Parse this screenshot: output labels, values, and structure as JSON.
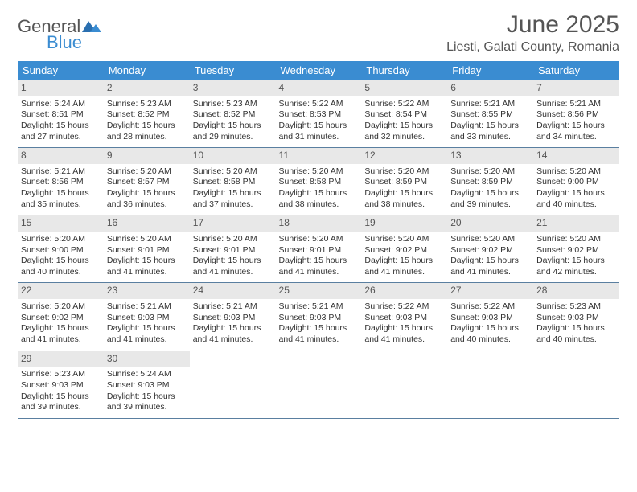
{
  "logo": {
    "general": "General",
    "blue": "Blue"
  },
  "title": "June 2025",
  "location": "Liesti, Galati County, Romania",
  "colors": {
    "header_bg": "#3a8cd1",
    "header_text": "#ffffff",
    "daynum_bg": "#e8e8e8",
    "border": "#5a7fa0",
    "title_color": "#555555",
    "body_text": "#333333",
    "logo_blue": "#3a8cd1",
    "logo_gray": "#555555"
  },
  "days_of_week": [
    "Sunday",
    "Monday",
    "Tuesday",
    "Wednesday",
    "Thursday",
    "Friday",
    "Saturday"
  ],
  "weeks": [
    [
      {
        "n": "1",
        "sr": "Sunrise: 5:24 AM",
        "ss": "Sunset: 8:51 PM",
        "d1": "Daylight: 15 hours",
        "d2": "and 27 minutes."
      },
      {
        "n": "2",
        "sr": "Sunrise: 5:23 AM",
        "ss": "Sunset: 8:52 PM",
        "d1": "Daylight: 15 hours",
        "d2": "and 28 minutes."
      },
      {
        "n": "3",
        "sr": "Sunrise: 5:23 AM",
        "ss": "Sunset: 8:52 PM",
        "d1": "Daylight: 15 hours",
        "d2": "and 29 minutes."
      },
      {
        "n": "4",
        "sr": "Sunrise: 5:22 AM",
        "ss": "Sunset: 8:53 PM",
        "d1": "Daylight: 15 hours",
        "d2": "and 31 minutes."
      },
      {
        "n": "5",
        "sr": "Sunrise: 5:22 AM",
        "ss": "Sunset: 8:54 PM",
        "d1": "Daylight: 15 hours",
        "d2": "and 32 minutes."
      },
      {
        "n": "6",
        "sr": "Sunrise: 5:21 AM",
        "ss": "Sunset: 8:55 PM",
        "d1": "Daylight: 15 hours",
        "d2": "and 33 minutes."
      },
      {
        "n": "7",
        "sr": "Sunrise: 5:21 AM",
        "ss": "Sunset: 8:56 PM",
        "d1": "Daylight: 15 hours",
        "d2": "and 34 minutes."
      }
    ],
    [
      {
        "n": "8",
        "sr": "Sunrise: 5:21 AM",
        "ss": "Sunset: 8:56 PM",
        "d1": "Daylight: 15 hours",
        "d2": "and 35 minutes."
      },
      {
        "n": "9",
        "sr": "Sunrise: 5:20 AM",
        "ss": "Sunset: 8:57 PM",
        "d1": "Daylight: 15 hours",
        "d2": "and 36 minutes."
      },
      {
        "n": "10",
        "sr": "Sunrise: 5:20 AM",
        "ss": "Sunset: 8:58 PM",
        "d1": "Daylight: 15 hours",
        "d2": "and 37 minutes."
      },
      {
        "n": "11",
        "sr": "Sunrise: 5:20 AM",
        "ss": "Sunset: 8:58 PM",
        "d1": "Daylight: 15 hours",
        "d2": "and 38 minutes."
      },
      {
        "n": "12",
        "sr": "Sunrise: 5:20 AM",
        "ss": "Sunset: 8:59 PM",
        "d1": "Daylight: 15 hours",
        "d2": "and 38 minutes."
      },
      {
        "n": "13",
        "sr": "Sunrise: 5:20 AM",
        "ss": "Sunset: 8:59 PM",
        "d1": "Daylight: 15 hours",
        "d2": "and 39 minutes."
      },
      {
        "n": "14",
        "sr": "Sunrise: 5:20 AM",
        "ss": "Sunset: 9:00 PM",
        "d1": "Daylight: 15 hours",
        "d2": "and 40 minutes."
      }
    ],
    [
      {
        "n": "15",
        "sr": "Sunrise: 5:20 AM",
        "ss": "Sunset: 9:00 PM",
        "d1": "Daylight: 15 hours",
        "d2": "and 40 minutes."
      },
      {
        "n": "16",
        "sr": "Sunrise: 5:20 AM",
        "ss": "Sunset: 9:01 PM",
        "d1": "Daylight: 15 hours",
        "d2": "and 41 minutes."
      },
      {
        "n": "17",
        "sr": "Sunrise: 5:20 AM",
        "ss": "Sunset: 9:01 PM",
        "d1": "Daylight: 15 hours",
        "d2": "and 41 minutes."
      },
      {
        "n": "18",
        "sr": "Sunrise: 5:20 AM",
        "ss": "Sunset: 9:01 PM",
        "d1": "Daylight: 15 hours",
        "d2": "and 41 minutes."
      },
      {
        "n": "19",
        "sr": "Sunrise: 5:20 AM",
        "ss": "Sunset: 9:02 PM",
        "d1": "Daylight: 15 hours",
        "d2": "and 41 minutes."
      },
      {
        "n": "20",
        "sr": "Sunrise: 5:20 AM",
        "ss": "Sunset: 9:02 PM",
        "d1": "Daylight: 15 hours",
        "d2": "and 41 minutes."
      },
      {
        "n": "21",
        "sr": "Sunrise: 5:20 AM",
        "ss": "Sunset: 9:02 PM",
        "d1": "Daylight: 15 hours",
        "d2": "and 42 minutes."
      }
    ],
    [
      {
        "n": "22",
        "sr": "Sunrise: 5:20 AM",
        "ss": "Sunset: 9:02 PM",
        "d1": "Daylight: 15 hours",
        "d2": "and 41 minutes."
      },
      {
        "n": "23",
        "sr": "Sunrise: 5:21 AM",
        "ss": "Sunset: 9:03 PM",
        "d1": "Daylight: 15 hours",
        "d2": "and 41 minutes."
      },
      {
        "n": "24",
        "sr": "Sunrise: 5:21 AM",
        "ss": "Sunset: 9:03 PM",
        "d1": "Daylight: 15 hours",
        "d2": "and 41 minutes."
      },
      {
        "n": "25",
        "sr": "Sunrise: 5:21 AM",
        "ss": "Sunset: 9:03 PM",
        "d1": "Daylight: 15 hours",
        "d2": "and 41 minutes."
      },
      {
        "n": "26",
        "sr": "Sunrise: 5:22 AM",
        "ss": "Sunset: 9:03 PM",
        "d1": "Daylight: 15 hours",
        "d2": "and 41 minutes."
      },
      {
        "n": "27",
        "sr": "Sunrise: 5:22 AM",
        "ss": "Sunset: 9:03 PM",
        "d1": "Daylight: 15 hours",
        "d2": "and 40 minutes."
      },
      {
        "n": "28",
        "sr": "Sunrise: 5:23 AM",
        "ss": "Sunset: 9:03 PM",
        "d1": "Daylight: 15 hours",
        "d2": "and 40 minutes."
      }
    ],
    [
      {
        "n": "29",
        "sr": "Sunrise: 5:23 AM",
        "ss": "Sunset: 9:03 PM",
        "d1": "Daylight: 15 hours",
        "d2": "and 39 minutes."
      },
      {
        "n": "30",
        "sr": "Sunrise: 5:24 AM",
        "ss": "Sunset: 9:03 PM",
        "d1": "Daylight: 15 hours",
        "d2": "and 39 minutes."
      },
      null,
      null,
      null,
      null,
      null
    ]
  ]
}
